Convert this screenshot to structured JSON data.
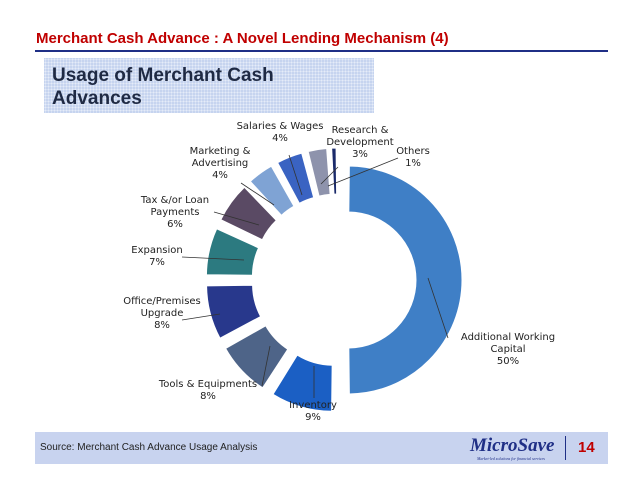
{
  "slide": {
    "title": "Merchant Cash Advance : A  Novel Lending Mechanism (4)",
    "subtitle": "Usage of Merchant Cash Advances",
    "source": "Source: Merchant Cash Advance Usage Analysis",
    "logo": "MicroSave",
    "logo_tagline": "Market-led solutions for financial services",
    "page_number": "14"
  },
  "colors": {
    "title": "#c00000",
    "rule": "#1f2f86",
    "subtitle_bg": "#c6d4ef",
    "footer_bg": "#c8d3ef"
  },
  "chart_data": {
    "type": "pie",
    "style": "exploded doughnut",
    "slices": [
      {
        "label": [
          "Additional Working",
          "Capital",
          "50%"
        ],
        "value": 50,
        "color": "#3f7fc6"
      },
      {
        "label": [
          "Inventory",
          "9%"
        ],
        "value": 9,
        "color": "#1b5fc4"
      },
      {
        "label": [
          "Tools & Equipments",
          "8%"
        ],
        "value": 8,
        "color": "#4e6488"
      },
      {
        "label": [
          "Office/Premises",
          "Upgrade",
          "8%"
        ],
        "value": 8,
        "color": "#28388c"
      },
      {
        "label": [
          "Expansion",
          "7%"
        ],
        "value": 7,
        "color": "#2c7a80"
      },
      {
        "label": [
          "Tax &/or Loan",
          "Payments",
          "6%"
        ],
        "value": 6,
        "color": "#5a4a64"
      },
      {
        "label": [
          "Marketing &",
          "Advertising",
          "4%"
        ],
        "value": 4,
        "color": "#7fa3d4"
      },
      {
        "label": [
          "Salaries & Wages",
          "4%"
        ],
        "value": 4,
        "color": "#3a63c2"
      },
      {
        "label": [
          "Research &",
          "Development",
          "3%"
        ],
        "value": 3,
        "color": "#8e93ac"
      },
      {
        "label": [
          "Others",
          "1%"
        ],
        "value": 1,
        "color": "#1a2a6a"
      }
    ]
  }
}
